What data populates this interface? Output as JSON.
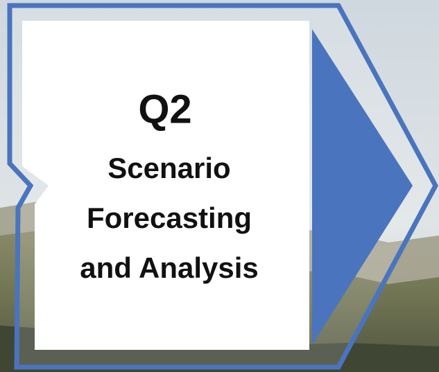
{
  "label": {
    "code": "Q2",
    "lines": [
      "Scenario",
      "Forecasting",
      "and Analysis"
    ]
  }
}
